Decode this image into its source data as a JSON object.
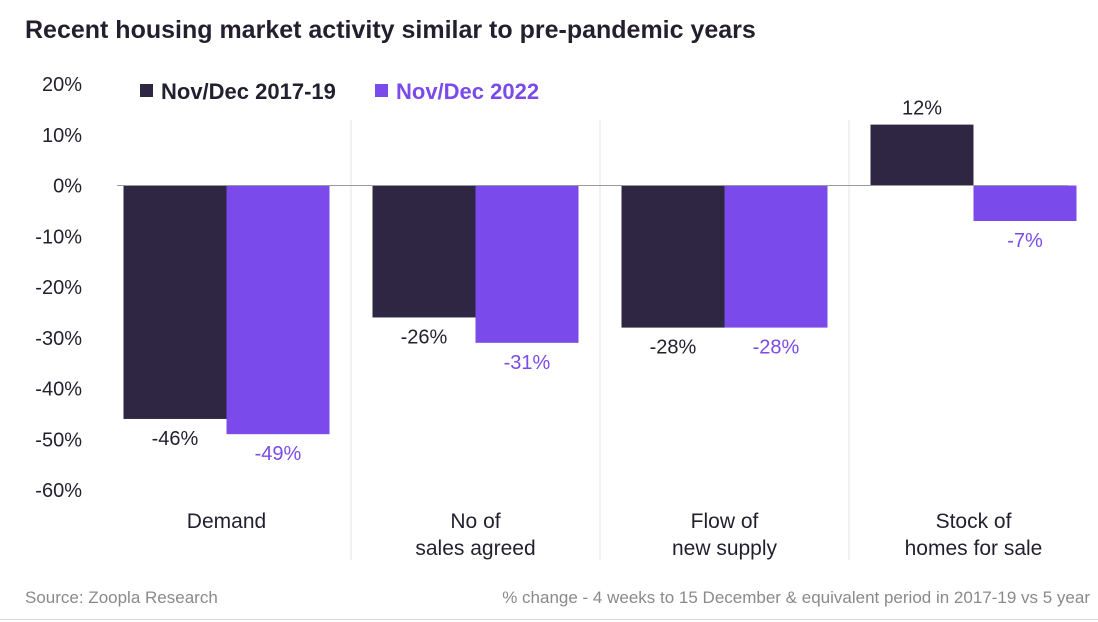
{
  "title": "Recent housing market activity similar to pre-pandemic years",
  "footer": {
    "source": "Source: Zoopla Research",
    "note": "% change - 4 weeks to 15 December & equivalent period in 2017-19 vs 5 year"
  },
  "colors": {
    "series_dark": "#2e2642",
    "series_purple": "#7a4bea",
    "label_dark": "#231f2e",
    "label_purple": "#7a4bea",
    "zero_line": "#9a9a9a",
    "separator": "#e6e6e6",
    "axis_text": "#231f2e"
  },
  "chart_data": {
    "type": "bar",
    "categories": [
      [
        "Demand"
      ],
      [
        "No of",
        "sales agreed"
      ],
      [
        "Flow of",
        "new supply"
      ],
      [
        "Stock of",
        "homes for sale"
      ]
    ],
    "series": [
      {
        "name": "Nov/Dec 2017-19",
        "values": [
          -46,
          -26,
          -28,
          12
        ],
        "labels": [
          "-46%",
          "-26%",
          "-28%",
          "12%"
        ]
      },
      {
        "name": "Nov/Dec 2022",
        "values": [
          -49,
          -31,
          -28,
          -7
        ],
        "labels": [
          "-49%",
          "-31%",
          "-28%",
          "-7%"
        ]
      }
    ],
    "ylim": [
      -60,
      20
    ],
    "yticks": [
      20,
      10,
      0,
      -10,
      -20,
      -30,
      -40,
      -50,
      -60
    ],
    "ytick_labels": [
      "20%",
      "10%",
      "0%",
      "-10%",
      "-20%",
      "-30%",
      "-40%",
      "-50%",
      "-60%"
    ],
    "legend_position": "top-left",
    "grid": false
  }
}
